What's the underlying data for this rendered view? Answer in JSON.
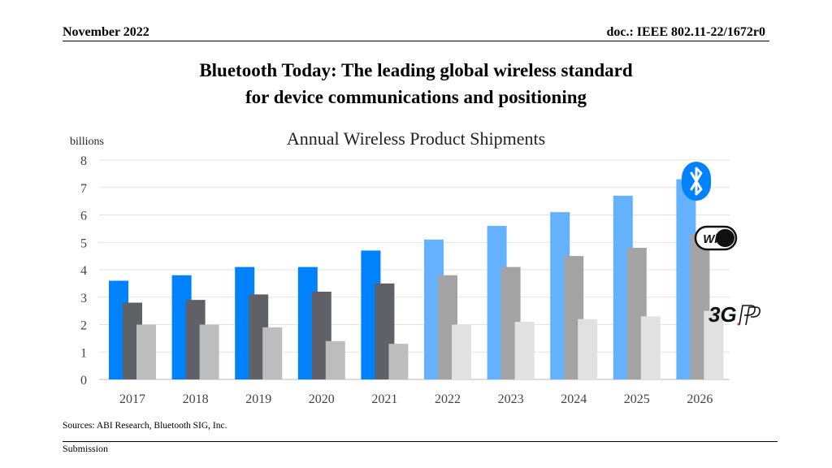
{
  "header": {
    "date": "November 2022",
    "doc": "doc.: IEEE 802.11-22/1672r0"
  },
  "title_lines": [
    "Bluetooth Today: The leading global wireless standard",
    "for device communications and positioning"
  ],
  "chart_data": {
    "type": "bar",
    "title": "Annual Wireless Product Shipments",
    "ylabel": "billions",
    "ylim": [
      0,
      8
    ],
    "yticks": [
      0,
      1,
      2,
      3,
      4,
      5,
      6,
      7,
      8
    ],
    "grid": true,
    "categories": [
      "2017",
      "2018",
      "2019",
      "2020",
      "2021",
      "2022",
      "2023",
      "2024",
      "2025",
      "2026"
    ],
    "forecast_start_index": 5,
    "series": [
      {
        "key": "bluetooth",
        "values": [
          3.6,
          3.8,
          4.1,
          4.1,
          4.7,
          5.1,
          5.6,
          6.1,
          6.7,
          7.3
        ],
        "color": "#0082FC",
        "forecast_color": "#63B1FF"
      },
      {
        "key": "wifi",
        "values": [
          2.8,
          2.9,
          3.1,
          3.2,
          3.5,
          3.8,
          4.1,
          4.5,
          4.8,
          5.3
        ],
        "color": "#606166",
        "forecast_color": "#A3A3A3"
      },
      {
        "key": "cellular",
        "values": [
          2.0,
          2.0,
          1.9,
          1.4,
          1.3,
          2.0,
          2.1,
          2.2,
          2.3,
          2.5
        ],
        "color": "#BDBDBD",
        "forecast_color": "#E1E1E1"
      }
    ],
    "logos": {
      "bluetooth": {
        "icon": "bluetooth-logo-icon",
        "color": "#0082FC"
      },
      "wifi": {
        "icon": "wifi-logo-icon",
        "text": "WiFi"
      },
      "cellular": {
        "icon": "3gpp-logo-icon",
        "text": "3G"
      }
    }
  },
  "sources": "Sources: ABI Research, Bluetooth SIG, Inc.",
  "footer": {
    "left": "Submission"
  }
}
